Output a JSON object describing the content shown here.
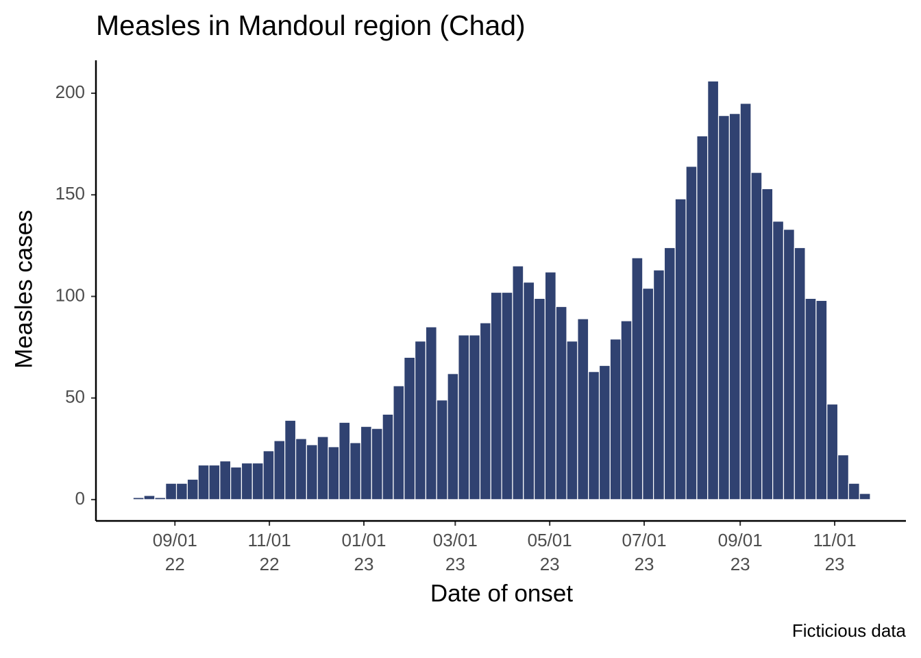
{
  "chart_data": {
    "type": "histogram",
    "title": "Measles in Mandoul region (Chad)",
    "x_label": "Date of onset",
    "y_label": "Measles cases",
    "caption": "Ficticious data",
    "color": "#304271",
    "bins": [
      "2022-08-05",
      "2022-08-12",
      "2022-08-19",
      "2022-08-26",
      "2022-09-02",
      "2022-09-09",
      "2022-09-16",
      "2022-09-23",
      "2022-09-30",
      "2022-10-07",
      "2022-10-14",
      "2022-10-21",
      "2022-10-28",
      "2022-11-04",
      "2022-11-11",
      "2022-11-18",
      "2022-11-25",
      "2022-12-02",
      "2022-12-09",
      "2022-12-16",
      "2022-12-23",
      "2022-12-30",
      "2023-01-06",
      "2023-01-13",
      "2023-01-20",
      "2023-01-27",
      "2023-02-03",
      "2023-02-10",
      "2023-02-17",
      "2023-02-24",
      "2023-03-03",
      "2023-03-10",
      "2023-03-17",
      "2023-03-24",
      "2023-03-31",
      "2023-04-07",
      "2023-04-14",
      "2023-04-21",
      "2023-04-28",
      "2023-05-05",
      "2023-05-12",
      "2023-05-19",
      "2023-05-26",
      "2023-06-02",
      "2023-06-09",
      "2023-06-16",
      "2023-06-23",
      "2023-06-30",
      "2023-07-07",
      "2023-07-14",
      "2023-07-21",
      "2023-07-28",
      "2023-08-04",
      "2023-08-11",
      "2023-08-18",
      "2023-08-25",
      "2023-09-01",
      "2023-09-08",
      "2023-09-15",
      "2023-09-22",
      "2023-09-29",
      "2023-10-06",
      "2023-10-13",
      "2023-10-20",
      "2023-10-27",
      "2023-11-03",
      "2023-11-10",
      "2023-11-17",
      "2023-11-24"
    ],
    "values": [
      1,
      2,
      1,
      8,
      8,
      10,
      17,
      17,
      19,
      16,
      18,
      18,
      24,
      29,
      39,
      30,
      27,
      31,
      26,
      38,
      28,
      36,
      35,
      42,
      56,
      70,
      78,
      85,
      49,
      62,
      81,
      81,
      87,
      102,
      102,
      115,
      107,
      99,
      112,
      95,
      78,
      89,
      63,
      66,
      79,
      88,
      119,
      104,
      113,
      124,
      148,
      164,
      179,
      206,
      189,
      190,
      195,
      161,
      153,
      137,
      133,
      124,
      99,
      98,
      47,
      22,
      8,
      3
    ],
    "xlim": [
      "2022-07-12",
      "2023-12-17"
    ],
    "xticks": [
      {
        "value": "2022-09-01",
        "label": "09/01\n22"
      },
      {
        "value": "2022-11-01",
        "label": "11/01\n22"
      },
      {
        "value": "2023-01-01",
        "label": "01/01\n23"
      },
      {
        "value": "2023-03-01",
        "label": "03/01\n23"
      },
      {
        "value": "2023-05-01",
        "label": "05/01\n23"
      },
      {
        "value": "2023-07-01",
        "label": "07/01\n23"
      },
      {
        "value": "2023-09-01",
        "label": "09/01\n23"
      },
      {
        "value": "2023-11-01",
        "label": "11/01\n23"
      }
    ],
    "ylim": [
      -10.5,
      216.2
    ],
    "yticks": [
      0,
      50,
      100,
      150,
      200
    ]
  }
}
